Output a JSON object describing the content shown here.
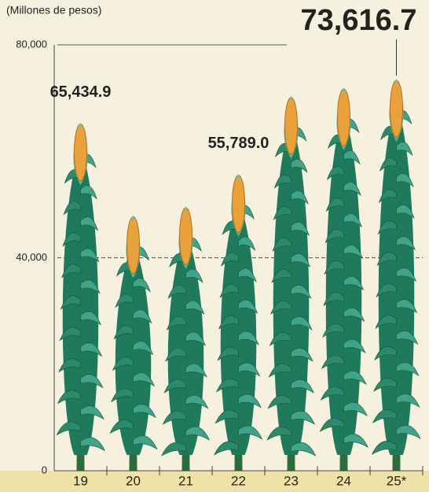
{
  "chart_data": {
    "type": "pictograph",
    "subtitle": "(Millones de pesos)",
    "categories": [
      "19",
      "20",
      "21",
      "22",
      "23",
      "24",
      "25*"
    ],
    "values": [
      65434.9,
      48000,
      49700,
      55789.0,
      70400,
      72000,
      73616.7
    ],
    "value_labels": [
      "65,434.9",
      null,
      null,
      "55,789.0",
      null,
      null,
      "73,616.7"
    ],
    "color": "#1f7a5c",
    "ylim": [
      0,
      80000
    ],
    "yticks": [
      0,
      {
        "value": 40000,
        "label": "40,000"
      },
      {
        "value": 80000,
        "label": "80,000"
      }
    ],
    "grid": true
  }
}
